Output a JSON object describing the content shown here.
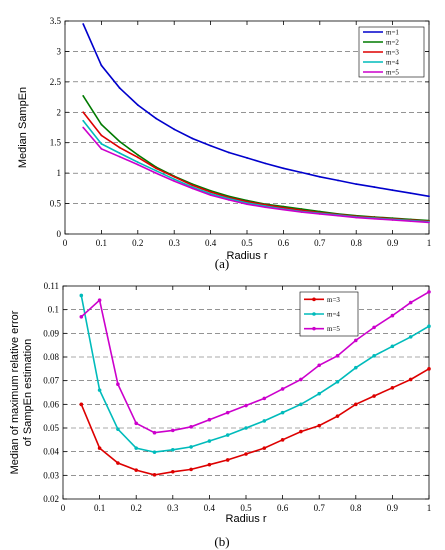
{
  "chart_data": [
    {
      "type": "line",
      "panel_label": "(a)",
      "xlabel": "Radius r",
      "ylabel": "Median SampEn",
      "xlim": [
        0,
        1
      ],
      "ylim": [
        0,
        3.5
      ],
      "xticks": [
        0,
        0.1,
        0.2,
        0.3,
        0.4,
        0.5,
        0.6,
        0.7,
        0.8,
        0.9,
        1
      ],
      "xtick_labels": [
        "0",
        "0.1",
        "0.2",
        "0.3",
        "0.4",
        "0.5",
        "0.6",
        "0.7",
        "0.8",
        "0.9",
        "1"
      ],
      "yticks": [
        0,
        0.5,
        1,
        1.5,
        2,
        2.5,
        3,
        3.5
      ],
      "ytick_labels": [
        "0",
        "0.5",
        "1",
        "1.5",
        "2",
        "2.5",
        "3",
        "3.5"
      ],
      "grid": "horizontal-dashed",
      "legend_position": "top-right",
      "x": [
        0.05,
        0.1,
        0.15,
        0.2,
        0.25,
        0.3,
        0.35,
        0.4,
        0.45,
        0.5,
        0.55,
        0.6,
        0.65,
        0.7,
        0.75,
        0.8,
        0.85,
        0.9,
        0.95,
        1
      ],
      "series": [
        {
          "name": "m=1",
          "color": "#0000cc",
          "values": [
            3.45,
            2.77,
            2.4,
            2.12,
            1.9,
            1.72,
            1.57,
            1.45,
            1.34,
            1.25,
            1.16,
            1.08,
            1.01,
            0.94,
            0.88,
            0.82,
            0.77,
            0.72,
            0.67,
            0.62
          ]
        },
        {
          "name": "m=2",
          "color": "#007a00",
          "values": [
            2.27,
            1.8,
            1.52,
            1.3,
            1.1,
            0.95,
            0.82,
            0.71,
            0.62,
            0.55,
            0.49,
            0.45,
            0.41,
            0.37,
            0.33,
            0.3,
            0.28,
            0.26,
            0.24,
            0.22
          ]
        },
        {
          "name": "m=3",
          "color": "#dd0000",
          "values": [
            2.0,
            1.62,
            1.42,
            1.26,
            1.08,
            0.94,
            0.8,
            0.69,
            0.6,
            0.53,
            0.48,
            0.43,
            0.39,
            0.35,
            0.32,
            0.29,
            0.27,
            0.25,
            0.23,
            0.21
          ]
        },
        {
          "name": "m=4",
          "color": "#00bbbb",
          "values": [
            1.86,
            1.48,
            1.33,
            1.18,
            1.04,
            0.9,
            0.77,
            0.66,
            0.58,
            0.51,
            0.46,
            0.41,
            0.37,
            0.34,
            0.31,
            0.28,
            0.26,
            0.24,
            0.22,
            0.2
          ]
        },
        {
          "name": "m=5",
          "color": "#cc00cc",
          "values": [
            1.75,
            1.4,
            1.27,
            1.14,
            1.0,
            0.87,
            0.75,
            0.64,
            0.56,
            0.49,
            0.44,
            0.4,
            0.36,
            0.33,
            0.3,
            0.27,
            0.25,
            0.23,
            0.21,
            0.19
          ]
        }
      ]
    },
    {
      "type": "line",
      "panel_label": "(b)",
      "xlabel": "Radius r",
      "ylabel": "Median of maximum relative error\nof SampEn estimation",
      "ylabel_lines": [
        "Median of maximum relative error",
        "of SampEn estimation"
      ],
      "xlim": [
        0,
        1
      ],
      "ylim": [
        0.02,
        0.11
      ],
      "xticks": [
        0,
        0.1,
        0.2,
        0.3,
        0.4,
        0.5,
        0.6,
        0.7,
        0.8,
        0.9,
        1
      ],
      "xtick_labels": [
        "0",
        "0.1",
        "0.2",
        "0.3",
        "0.4",
        "0.5",
        "0.6",
        "0.7",
        "0.8",
        "0.9",
        "1"
      ],
      "yticks": [
        0.02,
        0.03,
        0.04,
        0.05,
        0.06,
        0.07,
        0.08,
        0.09,
        0.1,
        0.11
      ],
      "ytick_labels": [
        "0.02",
        "0.03",
        "0.04",
        "0.05",
        "0.06",
        "0.07",
        "0.08",
        "0.09",
        "0.1",
        "0.11"
      ],
      "grid": "horizontal-dashed",
      "legend_position": "top-right",
      "x": [
        0.05,
        0.1,
        0.15,
        0.2,
        0.25,
        0.3,
        0.35,
        0.4,
        0.45,
        0.5,
        0.55,
        0.6,
        0.65,
        0.7,
        0.75,
        0.8,
        0.85,
        0.9,
        0.95,
        1
      ],
      "series": [
        {
          "name": "m=3",
          "color": "#dd0000",
          "values": [
            0.06,
            0.0415,
            0.0352,
            0.0322,
            0.0302,
            0.0315,
            0.0325,
            0.0345,
            0.0365,
            0.039,
            0.0415,
            0.045,
            0.0485,
            0.051,
            0.055,
            0.06,
            0.0635,
            0.067,
            0.0705,
            0.075
          ]
        },
        {
          "name": "m=4",
          "color": "#00bbbb",
          "values": [
            0.106,
            0.066,
            0.0495,
            0.0415,
            0.0398,
            0.0408,
            0.042,
            0.0445,
            0.047,
            0.05,
            0.053,
            0.0565,
            0.06,
            0.0645,
            0.0695,
            0.0755,
            0.0805,
            0.0845,
            0.0885,
            0.093
          ]
        },
        {
          "name": "m=5",
          "color": "#cc00cc",
          "values": [
            0.097,
            0.104,
            0.0685,
            0.052,
            0.048,
            0.049,
            0.0505,
            0.0535,
            0.0565,
            0.0595,
            0.0625,
            0.0665,
            0.0705,
            0.0765,
            0.0805,
            0.087,
            0.0925,
            0.0975,
            0.103,
            0.1075
          ]
        }
      ]
    }
  ]
}
